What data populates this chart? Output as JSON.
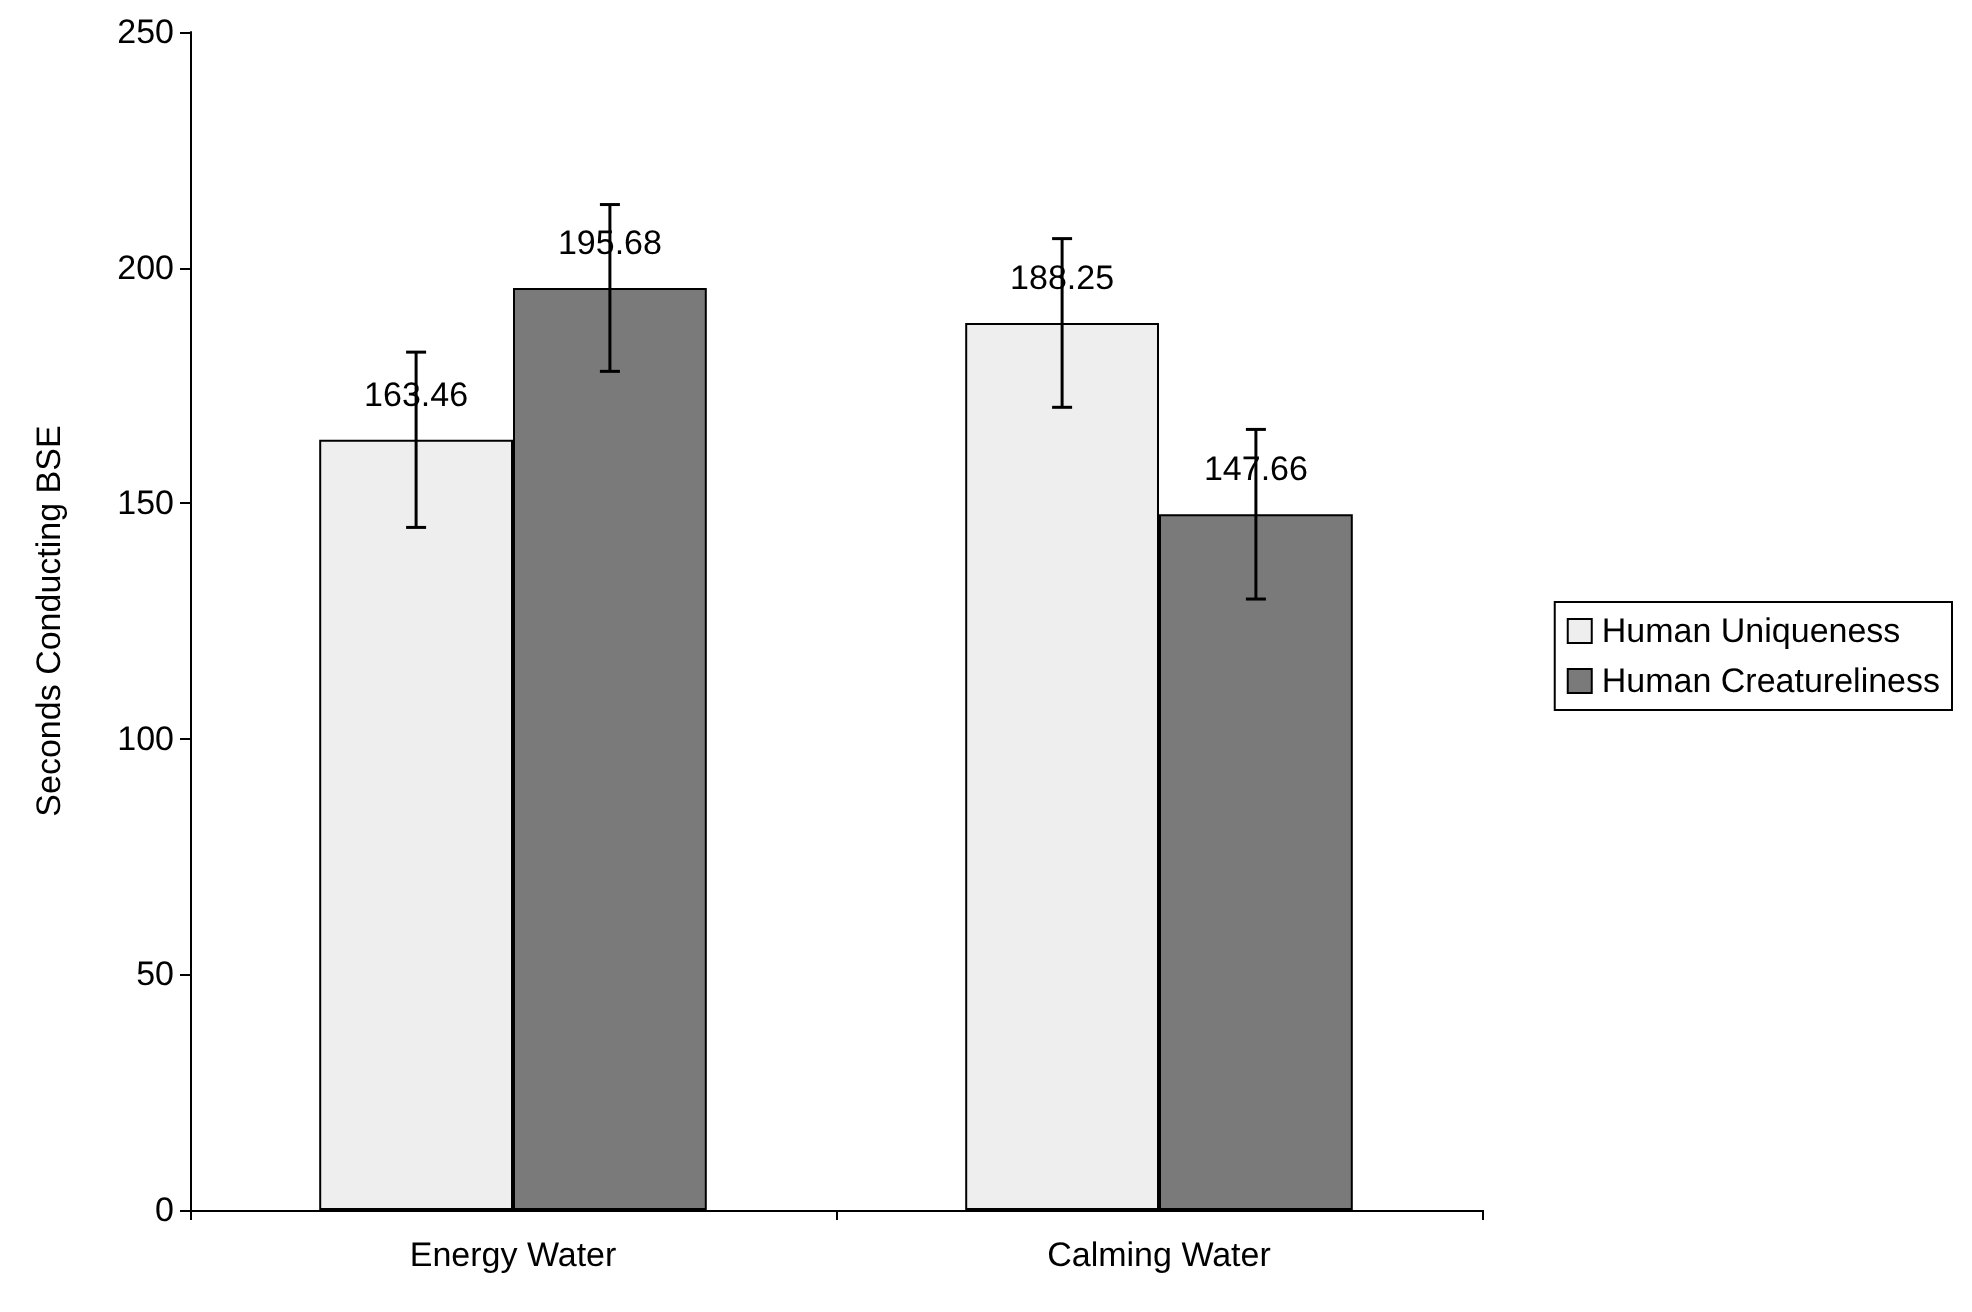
{
  "chart_data": {
    "type": "bar",
    "ylabel": "Seconds Conducting BSE",
    "categories": [
      "Energy Water",
      "Calming Water"
    ],
    "series": [
      {
        "name": "Human Uniqueness",
        "color": "#eeeeee",
        "values": [
          163.46,
          188.25
        ],
        "errors": [
          18.6,
          17.9
        ]
      },
      {
        "name": "Human Creatureliness",
        "color": "#7a7a7a",
        "values": [
          195.68,
          147.66
        ],
        "errors": [
          17.7,
          18
        ]
      }
    ],
    "ylim": [
      0,
      250
    ],
    "yticks": [
      0,
      50,
      100,
      150,
      200,
      250
    ],
    "grid": false,
    "legend": "right",
    "data_labels": true
  }
}
